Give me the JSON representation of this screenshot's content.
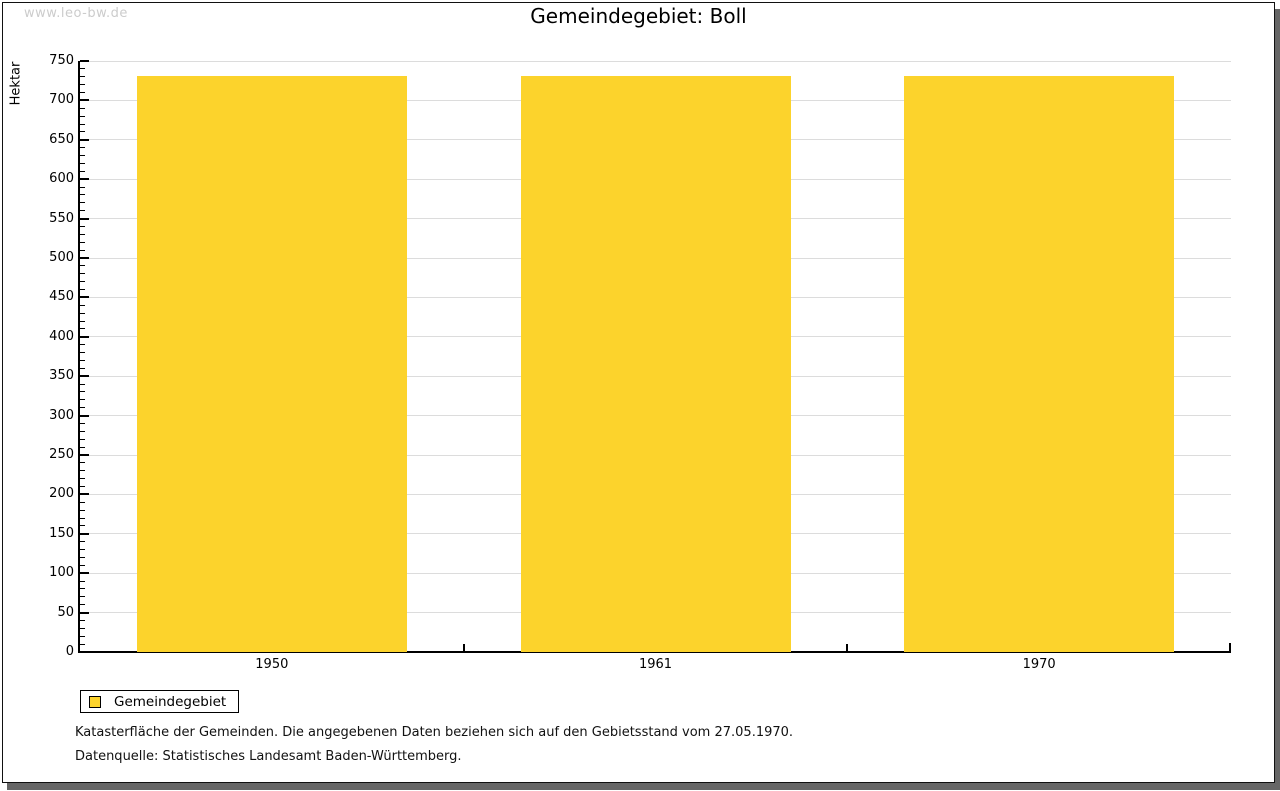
{
  "watermark": "www.leo-bw.de",
  "title": "Gemeindegebiet: Boll",
  "chart_data": {
    "type": "bar",
    "title": "Gemeindegebiet: Boll",
    "categories": [
      "1950",
      "1961",
      "1970"
    ],
    "series": [
      {
        "name": "Gemeindegebiet",
        "values": [
          731,
          731,
          731
        ]
      }
    ],
    "xlabel": "",
    "ylabel": "Hektar",
    "ylim": [
      0,
      750
    ],
    "y_major_step": 50,
    "y_minor_step": 10,
    "grid": "horizontal-major",
    "legend_position": "bottom-left",
    "bar_color": "#FCD32C"
  },
  "legend": {
    "items": [
      {
        "label": "Gemeindegebiet",
        "color": "#FCD32C"
      }
    ]
  },
  "footnotes": [
    "Katasterfläche der Gemeinden. Die angegebenen Daten beziehen sich auf den Gebietsstand vom 27.05.1970.",
    "Datenquelle: Statistisches Landesamt Baden-Württemberg."
  ]
}
